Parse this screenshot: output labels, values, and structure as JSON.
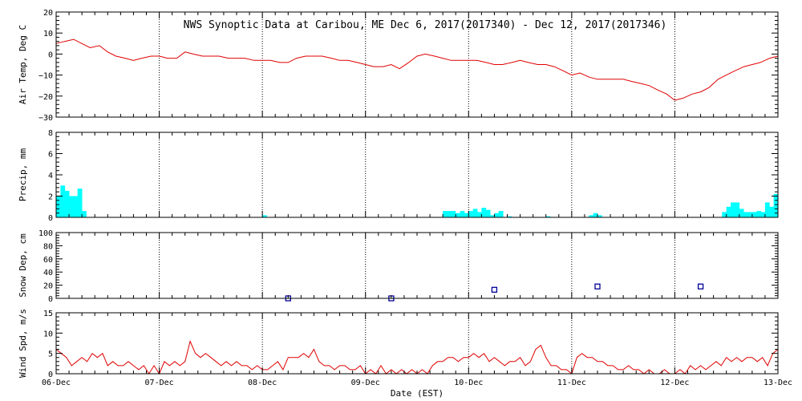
{
  "chart_data": {
    "title": "NWS Synoptic Data at Caribou, ME   Dec  6, 2017(2017340) - Dec 12, 2017(2017346)",
    "xlabel": "Date (EST)",
    "x_ticks": [
      "06-Dec",
      "07-Dec",
      "08-Dec",
      "09-Dec",
      "10-Dec",
      "11-Dec",
      "12-Dec",
      "13-Dec"
    ],
    "x_range_days": [
      0,
      7
    ],
    "grid": "vertical dotted at day boundaries",
    "colors": {
      "air_temp": "#e00000",
      "precip": "#00ffff",
      "snow": "#000099",
      "wind": "#e00000",
      "grid": "#000000"
    },
    "panels": [
      {
        "key": "air_temp",
        "type": "line",
        "ylabel": "Air Temp, Deg C",
        "ylim": [
          -30,
          20
        ],
        "yticks": [
          "20",
          "10",
          "0",
          "−10",
          "−20",
          "−30"
        ],
        "series": [
          {
            "x": [
              0,
              0.08,
              0.17,
              0.25,
              0.33,
              0.42,
              0.5,
              0.58,
              0.67,
              0.75,
              0.83,
              0.92,
              1.0,
              1.08,
              1.17,
              1.25,
              1.33,
              1.42,
              1.5,
              1.58,
              1.67,
              1.75,
              1.83,
              1.92,
              2.0,
              2.08,
              2.17,
              2.25,
              2.33,
              2.42,
              2.5,
              2.58,
              2.67,
              2.75,
              2.83,
              2.92,
              3.0,
              3.08,
              3.17,
              3.25,
              3.33,
              3.42,
              3.5,
              3.58,
              3.67,
              3.75,
              3.83,
              3.92,
              4.0,
              4.08,
              4.17,
              4.25,
              4.33,
              4.42,
              4.5,
              4.58,
              4.67,
              4.75,
              4.83,
              4.92,
              5.0,
              5.08,
              5.17,
              5.25,
              5.33,
              5.42,
              5.5,
              5.58,
              5.67,
              5.75,
              5.83,
              5.92,
              6.0,
              6.08,
              6.17,
              6.25,
              6.33,
              6.42,
              6.5,
              6.58,
              6.67,
              6.75,
              6.83,
              6.92,
              7.0
            ],
            "y": [
              5,
              6,
              7,
              5,
              3,
              4,
              1,
              -1,
              -2,
              -3,
              -2,
              -1,
              -1,
              -2,
              -2,
              1,
              0,
              -1,
              -1,
              -1,
              -2,
              -2,
              -2,
              -3,
              -3,
              -3,
              -4,
              -4,
              -2,
              -1,
              -1,
              -1,
              -2,
              -3,
              -3,
              -4,
              -5,
              -6,
              -6,
              -5,
              -7,
              -4,
              -1,
              0,
              -1,
              -2,
              -3,
              -3,
              -3,
              -3,
              -4,
              -5,
              -5,
              -4,
              -3,
              -4,
              -5,
              -5,
              -6,
              -8,
              -10,
              -9,
              -11,
              -12,
              -12,
              -12,
              -12,
              -13,
              -14,
              -15,
              -17,
              -19,
              -22,
              -21,
              -19,
              -18,
              -16,
              -12,
              -10,
              -8,
              -6,
              -5,
              -4,
              -2,
              -1
            ]
          }
        ]
      },
      {
        "key": "precip",
        "type": "bar",
        "ylabel": "Precip, mm",
        "ylim": [
          0,
          8
        ],
        "yticks": [
          "8",
          "6",
          "4",
          "2",
          "0"
        ],
        "bin_hours": 1,
        "bars": [
          {
            "x": 0.0,
            "v": 2.0
          },
          {
            "x": 0.042,
            "v": 3.0
          },
          {
            "x": 0.083,
            "v": 2.5
          },
          {
            "x": 0.125,
            "v": 2.0
          },
          {
            "x": 0.167,
            "v": 2.0
          },
          {
            "x": 0.208,
            "v": 2.7
          },
          {
            "x": 0.25,
            "v": 0.6
          },
          {
            "x": 2.0,
            "v": 0.2
          },
          {
            "x": 3.75,
            "v": 0.6
          },
          {
            "x": 3.79,
            "v": 0.6
          },
          {
            "x": 3.83,
            "v": 0.6
          },
          {
            "x": 3.875,
            "v": 0.4
          },
          {
            "x": 3.917,
            "v": 0.6
          },
          {
            "x": 3.958,
            "v": 0.4
          },
          {
            "x": 4.0,
            "v": 0.6
          },
          {
            "x": 4.042,
            "v": 0.8
          },
          {
            "x": 4.083,
            "v": 0.5
          },
          {
            "x": 4.125,
            "v": 0.9
          },
          {
            "x": 4.167,
            "v": 0.7
          },
          {
            "x": 4.208,
            "v": 0.2
          },
          {
            "x": 4.25,
            "v": 0.4
          },
          {
            "x": 4.292,
            "v": 0.6
          },
          {
            "x": 4.375,
            "v": 0.1
          },
          {
            "x": 4.75,
            "v": 0.1
          },
          {
            "x": 5.167,
            "v": 0.2
          },
          {
            "x": 5.208,
            "v": 0.4
          },
          {
            "x": 5.25,
            "v": 0.2
          },
          {
            "x": 6.458,
            "v": 0.5
          },
          {
            "x": 6.5,
            "v": 1.0
          },
          {
            "x": 6.542,
            "v": 1.4
          },
          {
            "x": 6.583,
            "v": 1.4
          },
          {
            "x": 6.625,
            "v": 0.8
          },
          {
            "x": 6.667,
            "v": 0.5
          },
          {
            "x": 6.708,
            "v": 0.5
          },
          {
            "x": 6.75,
            "v": 0.5
          },
          {
            "x": 6.792,
            "v": 0.6
          },
          {
            "x": 6.833,
            "v": 0.5
          },
          {
            "x": 6.875,
            "v": 1.4
          },
          {
            "x": 6.917,
            "v": 1.0
          },
          {
            "x": 6.958,
            "v": 2.2
          }
        ]
      },
      {
        "key": "snow",
        "type": "scatter",
        "ylabel": "Snow Dep, cm",
        "ylim": [
          0,
          100
        ],
        "yticks": [
          "100",
          "80",
          "60",
          "40",
          "20",
          "0"
        ],
        "points": [
          {
            "x": 2.25,
            "y": 0
          },
          {
            "x": 3.25,
            "y": 0
          },
          {
            "x": 4.25,
            "y": 13
          },
          {
            "x": 5.25,
            "y": 18
          },
          {
            "x": 6.25,
            "y": 18
          }
        ]
      },
      {
        "key": "wind",
        "type": "line",
        "ylabel": "Wind Spd, m/s",
        "ylim": [
          0,
          15
        ],
        "yticks": [
          "15",
          "10",
          "5",
          "0"
        ],
        "series": [
          {
            "x": [
              0,
              0.05,
              0.1,
              0.15,
              0.2,
              0.25,
              0.3,
              0.35,
              0.4,
              0.45,
              0.5,
              0.55,
              0.6,
              0.65,
              0.7,
              0.75,
              0.8,
              0.85,
              0.9,
              0.95,
              1.0,
              1.05,
              1.1,
              1.15,
              1.2,
              1.25,
              1.3,
              1.35,
              1.4,
              1.45,
              1.5,
              1.55,
              1.6,
              1.65,
              1.7,
              1.75,
              1.8,
              1.85,
              1.9,
              1.95,
              2.0,
              2.05,
              2.1,
              2.15,
              2.2,
              2.25,
              2.3,
              2.35,
              2.4,
              2.45,
              2.5,
              2.55,
              2.6,
              2.65,
              2.7,
              2.75,
              2.8,
              2.85,
              2.9,
              2.95,
              3.0,
              3.05,
              3.1,
              3.15,
              3.2,
              3.25,
              3.3,
              3.35,
              3.4,
              3.45,
              3.5,
              3.55,
              3.6,
              3.65,
              3.7,
              3.75,
              3.8,
              3.85,
              3.9,
              3.95,
              4.0,
              4.05,
              4.1,
              4.15,
              4.2,
              4.25,
              4.3,
              4.35,
              4.4,
              4.45,
              4.5,
              4.55,
              4.6,
              4.65,
              4.7,
              4.75,
              4.8,
              4.85,
              4.9,
              4.95,
              5.0,
              5.05,
              5.1,
              5.15,
              5.2,
              5.25,
              5.3,
              5.35,
              5.4,
              5.45,
              5.5,
              5.55,
              5.6,
              5.65,
              5.7,
              5.75,
              5.8,
              5.85,
              5.9,
              5.95,
              6.0,
              6.05,
              6.1,
              6.15,
              6.2,
              6.25,
              6.3,
              6.35,
              6.4,
              6.45,
              6.5,
              6.55,
              6.6,
              6.65,
              6.7,
              6.75,
              6.8,
              6.85,
              6.9,
              6.95,
              7.0
            ],
            "y": [
              6,
              5,
              4,
              2,
              3,
              4,
              3,
              5,
              4,
              5,
              2,
              3,
              2,
              2,
              3,
              2,
              1,
              2,
              0,
              2,
              0,
              3,
              2,
              3,
              2,
              3,
              8,
              5,
              4,
              5,
              4,
              3,
              2,
              3,
              2,
              3,
              2,
              2,
              1,
              2,
              1,
              1,
              2,
              3,
              1,
              4,
              4,
              4,
              5,
              4,
              6,
              3,
              2,
              2,
              1,
              2,
              2,
              1,
              1,
              2,
              0,
              1,
              0,
              2,
              0,
              1,
              0,
              1,
              0,
              1,
              0,
              1,
              0,
              2,
              3,
              3,
              4,
              4,
              3,
              4,
              4,
              5,
              4,
              5,
              3,
              4,
              3,
              2,
              3,
              3,
              4,
              2,
              3,
              6,
              7,
              4,
              2,
              2,
              1,
              1,
              0,
              4,
              5,
              4,
              4,
              3,
              3,
              2,
              2,
              1,
              1,
              2,
              1,
              1,
              0,
              1,
              0,
              0,
              1,
              0,
              0,
              1,
              0,
              2,
              1,
              2,
              1,
              2,
              3,
              2,
              4,
              3,
              4,
              3,
              4,
              4,
              3,
              4,
              2,
              5,
              6
            ]
          }
        ]
      }
    ]
  }
}
